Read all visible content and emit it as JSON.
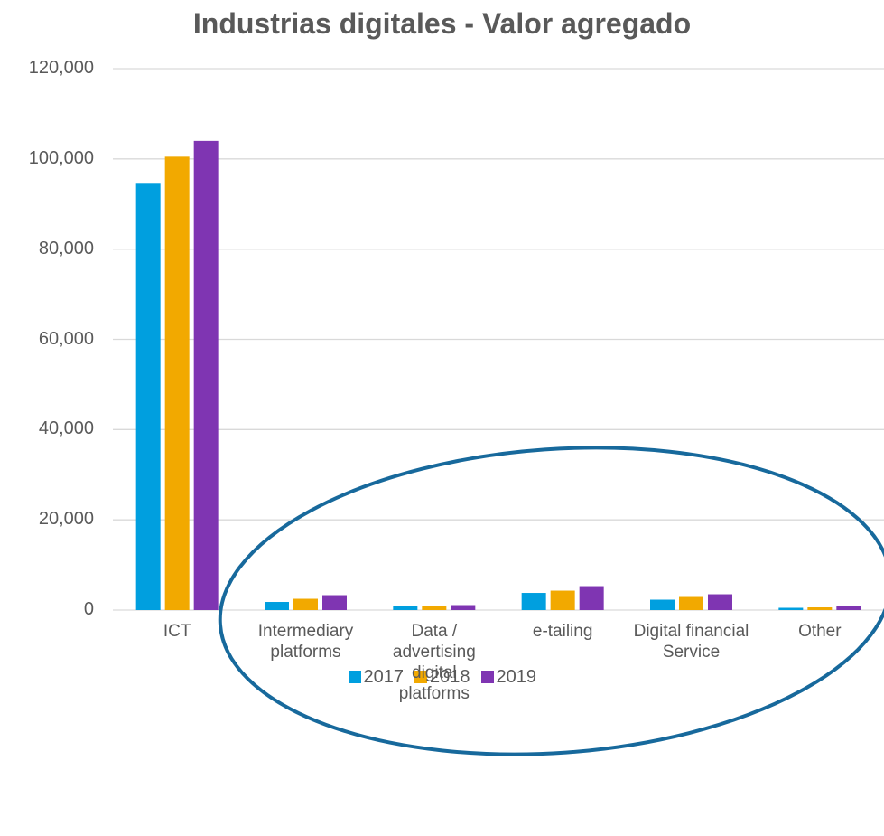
{
  "chart_data": {
    "type": "bar",
    "title": "Industrias digitales - Valor agregado",
    "categories": [
      "ICT",
      "Intermediary platforms",
      "Data / advertising digital platforms",
      "e-tailing",
      "Digital financial Service",
      "Other"
    ],
    "series": [
      {
        "name": "2017",
        "color": "#009fdf",
        "values": [
          94500,
          1800,
          900,
          3800,
          2300,
          500
        ]
      },
      {
        "name": "2018",
        "color": "#f2a900",
        "values": [
          100500,
          2500,
          900,
          4300,
          2900,
          600
        ]
      },
      {
        "name": "2019",
        "color": "#7f35b2",
        "values": [
          104000,
          3300,
          1100,
          5300,
          3500,
          1000
        ]
      }
    ],
    "ylim": [
      0,
      120000
    ],
    "yticks": [
      0,
      {
        "value": 20000,
        "label": "20,000"
      },
      {
        "value": 40000,
        "label": "40,000"
      },
      {
        "value": 60000,
        "label": "60,000"
      },
      {
        "value": 80000,
        "label": "80,000"
      },
      {
        "value": 100000,
        "label": "100,000"
      },
      {
        "value": 120000,
        "label": "120,000"
      }
    ],
    "grid": true,
    "legend": "bottom"
  }
}
